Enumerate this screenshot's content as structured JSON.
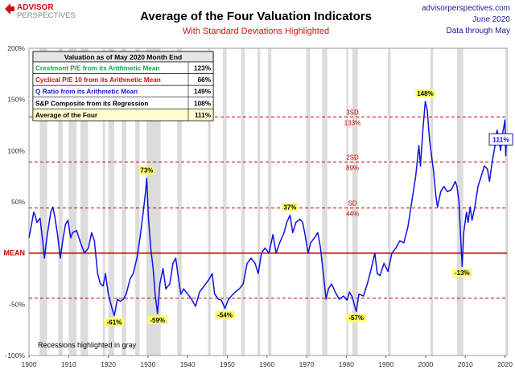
{
  "header": {
    "logo_line1": "ADVISOR",
    "logo_line2": "PERSPECTIVES",
    "title": "Average of the Four Valuation Indicators",
    "subtitle": "With Standard Deviations Highlighted",
    "site": "advisorperspectives.com",
    "date": "June 2020",
    "through": "Data through May"
  },
  "table": {
    "header": "Valuation as of May 2020  Month End",
    "rows": [
      {
        "label": "Crestmont P/E from its Arithmetic Mean",
        "value": "123%",
        "color": "#1fa04a"
      },
      {
        "label": "Cyclical P/E 10 from its Arithmetic Mean",
        "value": "66%",
        "color": "#cc1111"
      },
      {
        "label": "Q Ratio from its Arithmetic Mean",
        "value": "149%",
        "color": "#1a1acc"
      },
      {
        "label": "S&P Composite from its Regression",
        "value": "108%",
        "color": "#000000"
      },
      {
        "label": "Average of the Four",
        "value": "111%",
        "color": "#000000"
      }
    ]
  },
  "footnote": "Recessions highlighted in gray",
  "colors": {
    "line": "#1010e0",
    "mean": "#cc0000",
    "sd": "#cc0000",
    "recession": "#dcdcdc",
    "highlight": "#ffff66",
    "avg_row_bg": "#ffffcc",
    "table_header_bg": "#e6e6e6"
  },
  "chart_data": {
    "type": "line",
    "xlim": [
      1900,
      2020.5
    ],
    "ylim": [
      -100,
      200
    ],
    "x_ticks": [
      "1900",
      "1910",
      "1920",
      "1930",
      "1940",
      "1950",
      "1960",
      "1970",
      "1980",
      "1990",
      "2000",
      "2010",
      "2020"
    ],
    "y_ticks": [
      {
        "value": 200,
        "label": "200%"
      },
      {
        "value": 150,
        "label": "150%"
      },
      {
        "value": 100,
        "label": "100%"
      },
      {
        "value": 50,
        "label": "50%"
      },
      {
        "value": 0,
        "label": "MEAN"
      },
      {
        "value": -50,
        "label": "-50%"
      },
      {
        "value": -100,
        "label": "-100%"
      }
    ],
    "reference_lines": [
      {
        "name": "3SD",
        "value": 133,
        "line_label": "3SD",
        "value_label": "133%"
      },
      {
        "name": "2SD",
        "value": 89,
        "line_label": "2SD",
        "value_label": "89%"
      },
      {
        "name": "SD",
        "value": 44,
        "line_label": "SD",
        "value_label": "44%"
      },
      {
        "name": "MEAN",
        "value": 0
      },
      {
        "name": "-SD",
        "value": -44
      }
    ],
    "recessions": [
      [
        1902.7,
        1904.6
      ],
      [
        1907.4,
        1908.5
      ],
      [
        1910.0,
        1912.0
      ],
      [
        1913.0,
        1914.9
      ],
      [
        1918.6,
        1919.2
      ],
      [
        1920.0,
        1921.5
      ],
      [
        1923.4,
        1924.5
      ],
      [
        1926.8,
        1927.9
      ],
      [
        1929.6,
        1933.2
      ],
      [
        1937.4,
        1938.5
      ],
      [
        1945.1,
        1945.8
      ],
      [
        1948.9,
        1949.8
      ],
      [
        1953.5,
        1954.4
      ],
      [
        1957.6,
        1958.3
      ],
      [
        1960.3,
        1961.1
      ],
      [
        1969.9,
        1970.9
      ],
      [
        1973.9,
        1975.2
      ],
      [
        1980.0,
        1980.5
      ],
      [
        1981.5,
        1982.9
      ],
      [
        1990.5,
        1991.2
      ],
      [
        2001.2,
        2001.9
      ],
      [
        2007.9,
        2009.5
      ],
      [
        2020.1,
        2020.5
      ]
    ],
    "series": [
      {
        "values": [
          [
            1900.0,
            15
          ],
          [
            1900.5,
            25
          ],
          [
            1901.2,
            40
          ],
          [
            1901.6,
            36
          ],
          [
            1902.0,
            30
          ],
          [
            1902.8,
            34
          ],
          [
            1903.5,
            10
          ],
          [
            1903.9,
            -5
          ],
          [
            1904.5,
            15
          ],
          [
            1905.5,
            40
          ],
          [
            1906.0,
            45
          ],
          [
            1906.5,
            36
          ],
          [
            1907.2,
            18
          ],
          [
            1907.9,
            -5
          ],
          [
            1908.5,
            12
          ],
          [
            1909.2,
            28
          ],
          [
            1909.8,
            32
          ],
          [
            1910.5,
            15
          ],
          [
            1911.0,
            20
          ],
          [
            1912.0,
            22
          ],
          [
            1913.0,
            10
          ],
          [
            1914.0,
            0
          ],
          [
            1915.0,
            5
          ],
          [
            1915.8,
            20
          ],
          [
            1916.5,
            12
          ],
          [
            1917.3,
            -20
          ],
          [
            1918.0,
            -30
          ],
          [
            1918.7,
            -32
          ],
          [
            1919.3,
            -20
          ],
          [
            1920.0,
            -40
          ],
          [
            1921.0,
            -55
          ],
          [
            1921.5,
            -61
          ],
          [
            1922.3,
            -45
          ],
          [
            1923.0,
            -47
          ],
          [
            1923.8,
            -45
          ],
          [
            1924.5,
            -40
          ],
          [
            1925.5,
            -25
          ],
          [
            1926.3,
            -20
          ],
          [
            1927.2,
            -5
          ],
          [
            1928.0,
            15
          ],
          [
            1928.8,
            40
          ],
          [
            1929.4,
            60
          ],
          [
            1929.7,
            73
          ],
          [
            1930.1,
            35
          ],
          [
            1930.7,
            5
          ],
          [
            1931.3,
            -15
          ],
          [
            1931.8,
            -40
          ],
          [
            1932.4,
            -59
          ],
          [
            1933.0,
            -30
          ],
          [
            1933.8,
            -15
          ],
          [
            1934.5,
            -35
          ],
          [
            1935.5,
            -30
          ],
          [
            1936.3,
            -10
          ],
          [
            1937.0,
            -5
          ],
          [
            1937.7,
            -25
          ],
          [
            1938.3,
            -40
          ],
          [
            1939.0,
            -35
          ],
          [
            1940.0,
            -40
          ],
          [
            1941.0,
            -45
          ],
          [
            1942.0,
            -52
          ],
          [
            1943.0,
            -38
          ],
          [
            1944.0,
            -33
          ],
          [
            1945.5,
            -25
          ],
          [
            1946.2,
            -20
          ],
          [
            1946.8,
            -40
          ],
          [
            1947.8,
            -45
          ],
          [
            1948.5,
            -46
          ],
          [
            1949.4,
            -54
          ],
          [
            1950.2,
            -46
          ],
          [
            1951.0,
            -42
          ],
          [
            1952.0,
            -38
          ],
          [
            1953.0,
            -35
          ],
          [
            1954.0,
            -30
          ],
          [
            1955.0,
            -10
          ],
          [
            1956.0,
            -5
          ],
          [
            1957.0,
            -10
          ],
          [
            1957.8,
            -20
          ],
          [
            1958.6,
            0
          ],
          [
            1959.5,
            5
          ],
          [
            1960.5,
            0
          ],
          [
            1961.5,
            18
          ],
          [
            1962.3,
            0
          ],
          [
            1963.2,
            10
          ],
          [
            1964.3,
            20
          ],
          [
            1965.0,
            30
          ],
          [
            1965.8,
            37
          ],
          [
            1966.5,
            20
          ],
          [
            1967.3,
            30
          ],
          [
            1968.3,
            33
          ],
          [
            1969.0,
            30
          ],
          [
            1969.5,
            20
          ],
          [
            1970.4,
            0
          ],
          [
            1971.0,
            10
          ],
          [
            1972.0,
            15
          ],
          [
            1972.8,
            20
          ],
          [
            1973.5,
            5
          ],
          [
            1974.2,
            -20
          ],
          [
            1974.9,
            -45
          ],
          [
            1975.5,
            -35
          ],
          [
            1976.3,
            -30
          ],
          [
            1977.2,
            -38
          ],
          [
            1978.2,
            -45
          ],
          [
            1979.3,
            -42
          ],
          [
            1980.2,
            -46
          ],
          [
            1980.8,
            -38
          ],
          [
            1981.5,
            -43
          ],
          [
            1982.5,
            -57
          ],
          [
            1983.2,
            -40
          ],
          [
            1984.3,
            -42
          ],
          [
            1985.3,
            -30
          ],
          [
            1986.3,
            -15
          ],
          [
            1987.2,
            0
          ],
          [
            1987.8,
            -20
          ],
          [
            1988.5,
            -22
          ],
          [
            1989.5,
            -10
          ],
          [
            1990.5,
            -18
          ],
          [
            1991.5,
            0
          ],
          [
            1992.5,
            5
          ],
          [
            1993.5,
            12
          ],
          [
            1994.5,
            10
          ],
          [
            1995.5,
            25
          ],
          [
            1996.5,
            50
          ],
          [
            1997.5,
            75
          ],
          [
            1998.3,
            105
          ],
          [
            1998.7,
            85
          ],
          [
            1999.3,
            120
          ],
          [
            1999.9,
            148
          ],
          [
            2000.4,
            140
          ],
          [
            2001.0,
            110
          ],
          [
            2001.5,
            95
          ],
          [
            2002.0,
            80
          ],
          [
            2002.6,
            55
          ],
          [
            2003.0,
            45
          ],
          [
            2003.8,
            60
          ],
          [
            2004.6,
            65
          ],
          [
            2005.5,
            60
          ],
          [
            2006.5,
            62
          ],
          [
            2007.5,
            70
          ],
          [
            2007.9,
            65
          ],
          [
            2008.4,
            50
          ],
          [
            2008.9,
            10
          ],
          [
            2009.2,
            -13
          ],
          [
            2009.6,
            20
          ],
          [
            2010.3,
            40
          ],
          [
            2010.7,
            30
          ],
          [
            2011.2,
            45
          ],
          [
            2011.7,
            32
          ],
          [
            2012.4,
            45
          ],
          [
            2013.2,
            65
          ],
          [
            2014.0,
            75
          ],
          [
            2014.8,
            85
          ],
          [
            2015.6,
            82
          ],
          [
            2016.1,
            70
          ],
          [
            2016.8,
            90
          ],
          [
            2017.5,
            105
          ],
          [
            2018.0,
            120
          ],
          [
            2018.5,
            112
          ],
          [
            2018.9,
            100
          ],
          [
            2019.3,
            115
          ],
          [
            2019.8,
            125
          ],
          [
            2020.0,
            130
          ],
          [
            2020.2,
            95
          ],
          [
            2020.4,
            111
          ]
        ]
      }
    ],
    "annotations": [
      {
        "x": 1921.5,
        "y": -61,
        "text": "-61%",
        "pos": "below"
      },
      {
        "x": 1929.7,
        "y": 73,
        "text": "73%",
        "pos": "above"
      },
      {
        "x": 1932.4,
        "y": -59,
        "text": "-59%",
        "pos": "below"
      },
      {
        "x": 1949.4,
        "y": -54,
        "text": "-54%",
        "pos": "below"
      },
      {
        "x": 1965.8,
        "y": 37,
        "text": "37%",
        "pos": "above"
      },
      {
        "x": 1982.5,
        "y": -57,
        "text": "-57%",
        "pos": "below"
      },
      {
        "x": 1999.9,
        "y": 148,
        "text": "148%",
        "pos": "above"
      },
      {
        "x": 2009.2,
        "y": -13,
        "text": "-13%",
        "pos": "below"
      }
    ],
    "last_value_label": "111%"
  }
}
